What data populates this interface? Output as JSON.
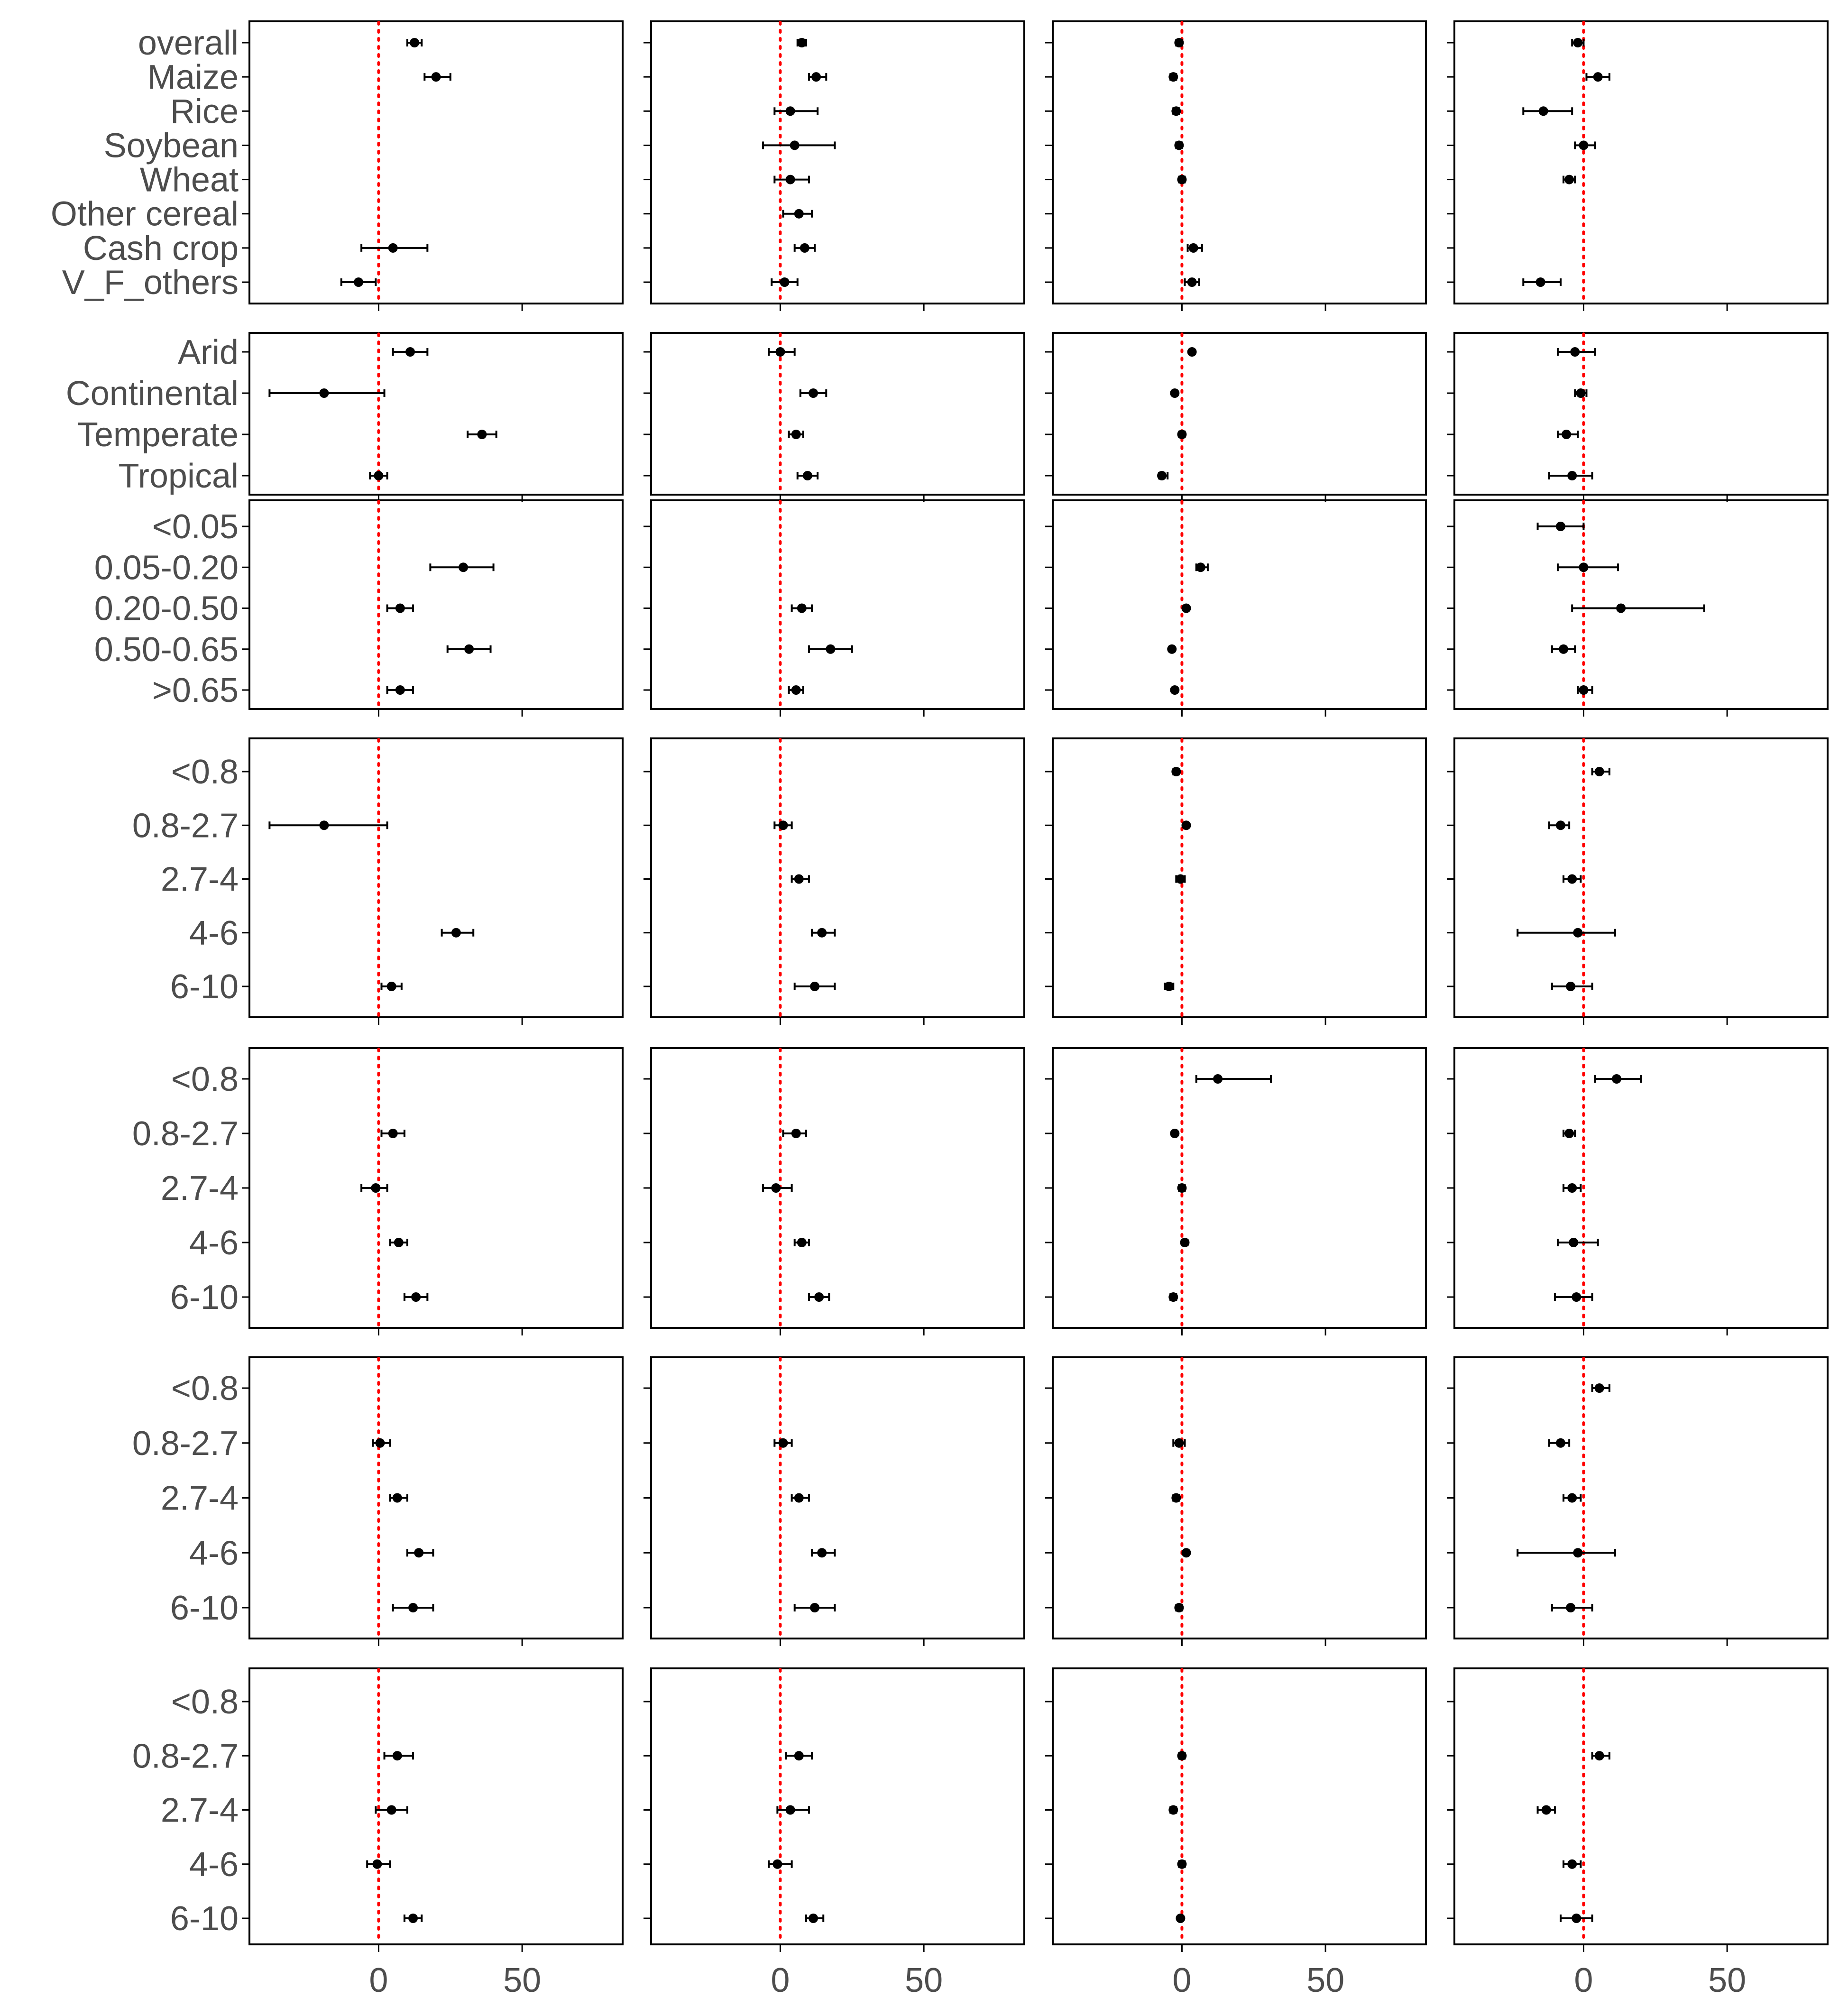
{
  "chart_data": {
    "type": "scatter",
    "subtype": "forest-plot-point-range",
    "grid": false,
    "reference_line": {
      "x": 0,
      "style": "dotted",
      "color": "#ff0000"
    },
    "colors": {
      "point": "#000000",
      "frame": "#000000",
      "reference": "#ff0000",
      "tick_label": "#4d4d4d"
    },
    "xlim": [
      -45,
      85
    ],
    "xticks": [
      0,
      50
    ],
    "xtick_labels": [
      "0",
      "50"
    ],
    "panel_columns": 4,
    "rows": [
      {
        "categories": [
          "overall",
          "Maize",
          "Rice",
          "Soybean",
          "Wheat",
          "Other cereal",
          "Cash crop",
          "V_F_others"
        ],
        "panels": [
          [
            [
              12.5,
              10,
              15
            ],
            [
              20,
              16,
              25
            ],
            null,
            null,
            null,
            null,
            [
              5,
              -6,
              17
            ],
            [
              -7,
              -13,
              -1
            ]
          ],
          [
            [
              7.5,
              6,
              9
            ],
            [
              12.5,
              10,
              16
            ],
            [
              3.5,
              -2,
              13
            ],
            [
              5,
              -6,
              19
            ],
            [
              3.5,
              -2,
              10
            ],
            [
              6.5,
              1,
              11
            ],
            [
              8.5,
              5,
              12
            ],
            [
              1.5,
              -3,
              6
            ]
          ],
          [
            [
              -1,
              -2,
              0
            ],
            [
              -3,
              -4,
              -2
            ],
            [
              -2,
              -3,
              -1
            ],
            [
              -1,
              -2,
              0
            ],
            [
              0,
              -1,
              1
            ],
            null,
            [
              4,
              2,
              7
            ],
            [
              3.5,
              1,
              6
            ]
          ],
          [
            [
              -2,
              -4,
              0
            ],
            [
              5,
              1,
              9
            ],
            [
              -14,
              -21,
              -4
            ],
            [
              0,
              -3,
              4
            ],
            [
              -5,
              -7,
              -3
            ],
            null,
            null,
            [
              -15,
              -21,
              -8
            ]
          ]
        ]
      },
      {
        "categories": [
          "Arid",
          "Continental",
          "Temperate",
          "Tropical"
        ],
        "panels": [
          [
            [
              11,
              5,
              17
            ],
            [
              -19,
              -38,
              2
            ],
            [
              36,
              31,
              41
            ],
            [
              0,
              -3,
              3
            ]
          ],
          [
            [
              0,
              -4,
              5
            ],
            [
              11.5,
              7,
              16
            ],
            [
              5.5,
              3,
              8
            ],
            [
              9.5,
              6,
              13
            ]
          ],
          [
            [
              3.5,
              3,
              4
            ],
            [
              -2.5,
              -3,
              -2
            ],
            [
              0,
              -1,
              1
            ],
            [
              -7,
              -8,
              -5
            ]
          ],
          [
            [
              -3,
              -9,
              4
            ],
            [
              -1,
              -3,
              1
            ],
            [
              -6,
              -9,
              -2
            ],
            [
              -4,
              -12,
              3
            ]
          ]
        ]
      },
      {
        "categories": [
          "<0.05",
          "0.05-0.20",
          "0.20-0.50",
          "0.50-0.65",
          ">0.65"
        ],
        "panels": [
          [
            null,
            [
              29.5,
              18,
              40
            ],
            [
              7.5,
              3,
              12
            ],
            [
              31.5,
              24,
              39
            ],
            [
              7.5,
              3,
              12
            ]
          ],
          [
            null,
            null,
            [
              7.5,
              4,
              11
            ],
            [
              17.5,
              10,
              25
            ],
            [
              5.5,
              3,
              8
            ]
          ],
          [
            null,
            [
              6.5,
              5,
              9
            ],
            [
              1.5,
              1,
              2
            ],
            [
              -3.5,
              -4,
              -3
            ],
            [
              -2.5,
              -3,
              -2
            ]
          ],
          [
            [
              -8,
              -16,
              0
            ],
            [
              0,
              -9,
              12
            ],
            [
              13,
              -4,
              42
            ],
            [
              -7,
              -11,
              -3
            ],
            [
              0,
              -2,
              3
            ]
          ]
        ]
      },
      {
        "categories": [
          "<0.8",
          "0.8-2.7",
          "2.7-4",
          "4-6",
          "6-10"
        ],
        "panels": [
          [
            null,
            [
              -19,
              -38,
              3
            ],
            null,
            [
              27,
              22,
              33
            ],
            [
              4.5,
              1,
              8
            ]
          ],
          [
            null,
            [
              1,
              -2,
              4
            ],
            [
              6.5,
              4,
              10
            ],
            [
              14.5,
              11,
              19
            ],
            [
              12,
              5,
              19
            ]
          ],
          [
            [
              -2,
              -3,
              -1
            ],
            [
              1.5,
              1,
              2
            ],
            [
              -0.5,
              -2,
              1
            ],
            null,
            [
              -4.5,
              -6,
              -3
            ]
          ],
          [
            [
              5.5,
              3,
              9
            ],
            [
              -8,
              -12,
              -5
            ],
            [
              -4,
              -7,
              -1
            ],
            [
              -2,
              -23,
              11
            ],
            [
              -4.5,
              -11,
              3
            ]
          ]
        ]
      },
      {
        "categories": [
          "<0.8",
          "0.8-2.7",
          "2.7-4",
          "4-6",
          "6-10"
        ],
        "panels": [
          [
            null,
            [
              5,
              1,
              9
            ],
            [
              -1,
              -6,
              3
            ],
            [
              7,
              4,
              10
            ],
            [
              13,
              9,
              17
            ]
          ],
          [
            null,
            [
              5.5,
              1,
              9
            ],
            [
              -1.5,
              -6,
              4
            ],
            [
              7.5,
              5,
              10
            ],
            [
              13.5,
              10,
              17
            ]
          ],
          [
            [
              12.5,
              5,
              31
            ],
            [
              -2.5,
              -3,
              -2
            ],
            [
              0,
              -1,
              1
            ],
            [
              1,
              0,
              2
            ],
            [
              -3,
              -4,
              -2
            ]
          ],
          [
            [
              11.5,
              4,
              20
            ],
            [
              -5,
              -7,
              -3
            ],
            [
              -4,
              -7,
              -1
            ],
            [
              -3.5,
              -9,
              5
            ],
            [
              -2.5,
              -10,
              3
            ]
          ]
        ]
      },
      {
        "categories": [
          "<0.8",
          "0.8-2.7",
          "2.7-4",
          "4-6",
          "6-10"
        ],
        "panels": [
          [
            null,
            [
              0.5,
              -2,
              4
            ],
            [
              6.5,
              4,
              10
            ],
            [
              14,
              10,
              19
            ],
            [
              12,
              5,
              19
            ]
          ],
          [
            null,
            [
              1,
              -2,
              4
            ],
            [
              6.5,
              4,
              10
            ],
            [
              14.5,
              11,
              19
            ],
            [
              12,
              5,
              19
            ]
          ],
          [
            null,
            [
              -1,
              -3,
              1
            ],
            [
              -2,
              -3,
              -1
            ],
            [
              1.5,
              1,
              2
            ],
            [
              -1,
              -2,
              0
            ]
          ],
          [
            [
              5.5,
              3,
              9
            ],
            [
              -8,
              -12,
              -5
            ],
            [
              -4,
              -7,
              -1
            ],
            [
              -2,
              -23,
              11
            ],
            [
              -4.5,
              -11,
              3
            ]
          ]
        ]
      },
      {
        "categories": [
          "<0.8",
          "0.8-2.7",
          "2.7-4",
          "4-6",
          "6-10"
        ],
        "panels": [
          [
            null,
            [
              6.5,
              2,
              12
            ],
            [
              4.5,
              -1,
              10
            ],
            [
              -0.5,
              -4,
              4
            ],
            [
              12,
              9,
              15
            ]
          ],
          [
            null,
            [
              6.5,
              2,
              11
            ],
            [
              3.5,
              -1,
              10
            ],
            [
              -1,
              -4,
              4
            ],
            [
              11.5,
              9,
              15
            ]
          ],
          [
            null,
            [
              0,
              -1,
              1
            ],
            [
              -3,
              -4,
              -2
            ],
            [
              0,
              -1,
              1
            ],
            [
              -0.5,
              -1,
              0
            ]
          ],
          [
            null,
            [
              5.5,
              3,
              9
            ],
            [
              -13,
              -16,
              -10
            ],
            [
              -4,
              -7,
              -1
            ],
            [
              -2.5,
              -8,
              3
            ]
          ]
        ]
      }
    ]
  }
}
